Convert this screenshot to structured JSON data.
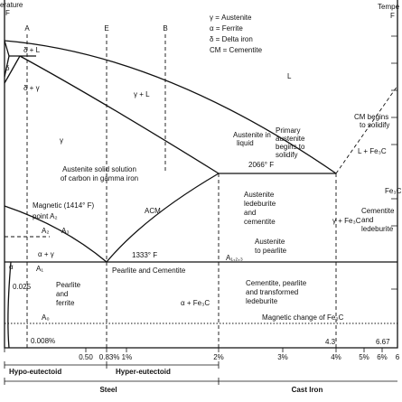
{
  "labels": [
    "erature",
    "F",
    "Tempe",
    "F",
    "A",
    "E",
    "B",
    "γ = Austenite",
    "α = Ferrite",
    "δ = Delta iron",
    "CM = Cementite",
    "δ + L",
    "δ",
    "δ + γ",
    "γ + L",
    "L",
    "γ",
    "Austenite in",
    "liquid",
    "Primary",
    "austenite",
    "begins to",
    "solidify",
    "CM begins",
    "to solidify",
    "L + Fe₃C",
    "Austenite solid solution",
    "of carbon in gamma iron",
    "2066° F",
    "Fe₃C",
    "Austenite",
    "ledeburite",
    "and",
    "cementite",
    "γ + Fe₃C",
    "Cementite",
    "and",
    "ledeburite",
    "Magnetic (1414° F)",
    "point A₂",
    "A₂",
    "A₃",
    "α + γ",
    "ACM",
    "1333° F",
    "Austenite",
    "to pearlite",
    "A₁,₂,₃",
    "A₁",
    "α",
    "0.025",
    "Pearlite",
    "and",
    "ferrite",
    "Pearlite and Cementite",
    "α + Fe₃C",
    "Cementite, pearlite",
    "and transformed",
    "ledeburite",
    "A₀",
    "Magnetic change of Fe₃C",
    "0.008%",
    "4.3",
    "6.67",
    "0.50",
    "0.83% 1%",
    "2%",
    "3%",
    "4%",
    "5%",
    "6%",
    "6",
    "Hypo-eutectoid",
    "Hyper-eutectoid",
    "Steel",
    "Cast Iron"
  ]
}
